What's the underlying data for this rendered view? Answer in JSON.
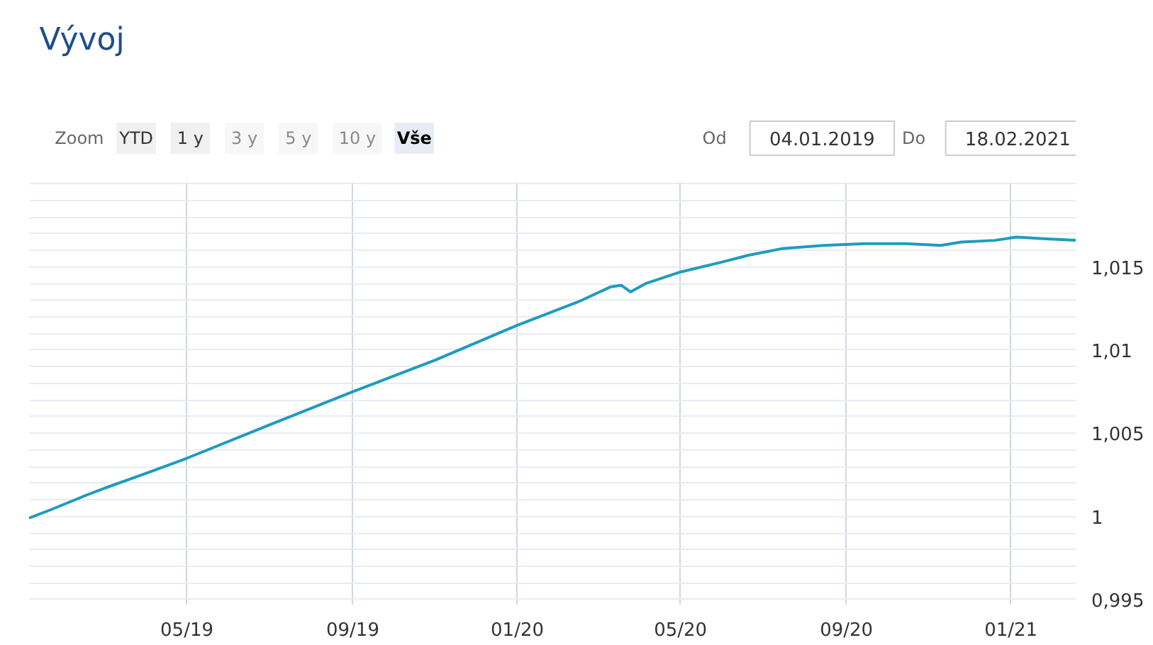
{
  "chart_data": {
    "type": "line",
    "title": "Vývoj",
    "annotations": [
      "Zoom",
      "YTD",
      "1 y",
      "3 y",
      "5 y",
      "10 y",
      "Vše",
      "Od",
      "04.01.2019",
      "Do",
      "18.02.2021"
    ],
    "x": [
      "2019-01-04",
      "2019-01-20",
      "2019-02-13",
      "2019-03-01",
      "2019-04-01",
      "2019-05-01",
      "2019-07-01",
      "2019-09-01",
      "2019-11-01",
      "2020-01-01",
      "2020-02-15",
      "2020-03-10",
      "2020-03-18",
      "2020-03-25",
      "2020-04-05",
      "2020-05-01",
      "2020-06-01",
      "2020-06-20",
      "2020-07-15",
      "2020-08-15",
      "2020-09-15",
      "2020-10-15",
      "2020-11-10",
      "2020-11-25",
      "2020-12-20",
      "2021-01-05",
      "2021-01-25",
      "2021-02-18"
    ],
    "series": [
      {
        "color": "#1f9bbf",
        "values": [
          0.9999,
          1.0004,
          1.0012,
          1.0017,
          1.0026,
          1.0035,
          1.0055,
          1.0075,
          1.0094,
          1.0115,
          1.0129,
          1.0138,
          1.0139,
          1.0135,
          1.014,
          1.0147,
          1.0153,
          1.0157,
          1.0161,
          1.0163,
          1.0164,
          1.0164,
          1.0163,
          1.0165,
          1.0166,
          1.0168,
          1.0167,
          1.0166
        ]
      }
    ],
    "xlim": [
      "2019-01-04",
      "2021-02-18"
    ],
    "xticks": [
      {
        "value": "2019-05-01",
        "label": "05/19"
      },
      {
        "value": "2019-09-01",
        "label": "09/19"
      },
      {
        "value": "2020-01-01",
        "label": "01/20"
      },
      {
        "value": "2020-05-01",
        "label": "05/20"
      },
      {
        "value": "2020-09-01",
        "label": "09/20"
      },
      {
        "value": "2021-01-01",
        "label": "01/21"
      }
    ],
    "ylim": [
      0.9947,
      1.0201
    ],
    "yticks": [
      {
        "value": 0.995,
        "label": "0,995"
      },
      {
        "value": 0.996,
        "label": null
      },
      {
        "value": 0.997,
        "label": null
      },
      {
        "value": 0.998,
        "label": null
      },
      {
        "value": 0.999,
        "label": null
      },
      {
        "value": 1,
        "label": "1"
      },
      {
        "value": 1.001,
        "label": null
      },
      {
        "value": 1.002,
        "label": null
      },
      {
        "value": 1.003,
        "label": null
      },
      {
        "value": 1.004,
        "label": null
      },
      {
        "value": 1.005,
        "label": "1,005"
      },
      {
        "value": 1.006,
        "label": null
      },
      {
        "value": 1.007,
        "label": null
      },
      {
        "value": 1.008,
        "label": null
      },
      {
        "value": 1.009,
        "label": null
      },
      {
        "value": 1.01,
        "label": "1,01"
      },
      {
        "value": 1.011,
        "label": null
      },
      {
        "value": 1.012,
        "label": null
      },
      {
        "value": 1.013,
        "label": null
      },
      {
        "value": 1.014,
        "label": null
      },
      {
        "value": 1.015,
        "label": "1,015"
      },
      {
        "value": 1.016,
        "label": null
      },
      {
        "value": 1.017,
        "label": null
      },
      {
        "value": 1.018,
        "label": null
      },
      {
        "value": 1.019,
        "label": null
      },
      {
        "value": 1.02,
        "label": null
      }
    ],
    "grid": true,
    "marker": "none",
    "line_style": "solid"
  }
}
